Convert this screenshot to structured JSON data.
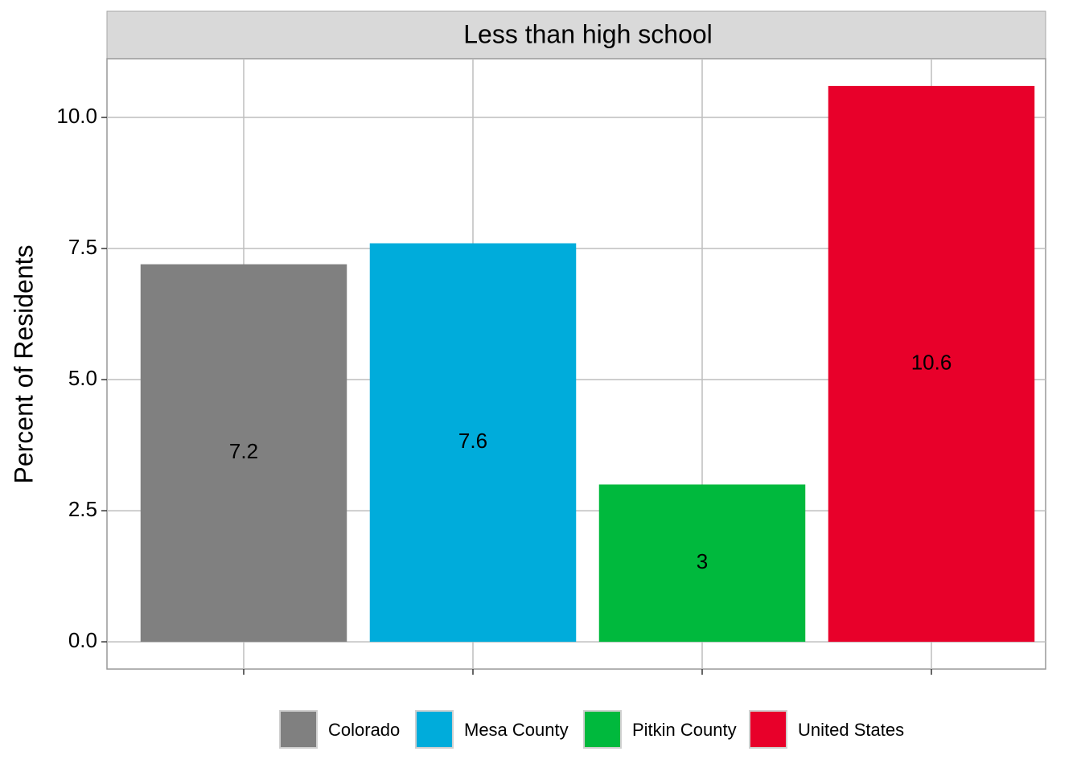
{
  "chart_data": {
    "type": "bar",
    "title": "Less than high school",
    "y_label": "Percent of Residents",
    "categories": [
      "Colorado",
      "Mesa County",
      "Pitkin County",
      "United States"
    ],
    "values": [
      7.2,
      7.6,
      3,
      10.6
    ],
    "colors": [
      "#808080",
      "#00acdb",
      "#00b93d",
      "#e8002a"
    ],
    "ylim": [
      -0.52,
      11.12
    ],
    "yticks": [
      {
        "value": 0,
        "label": "0.0"
      },
      2.5,
      {
        "value": 5,
        "label": "5.0"
      },
      7.5,
      {
        "value": 10,
        "label": "10.0"
      }
    ],
    "grid": true,
    "legend": "bottom"
  }
}
